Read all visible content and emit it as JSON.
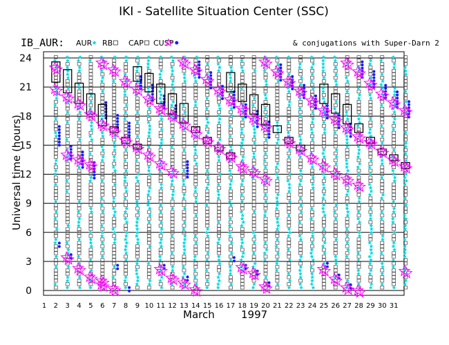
{
  "header": {
    "title": "IKI - Satellite Situation Center (SSC)",
    "instrument": "IB_AUR:",
    "conjugation_note": "& conjugations with Super-Darn 2"
  },
  "legend": {
    "items": [
      {
        "label": "AUR",
        "symbol": "cyan-star-icon",
        "color": "#00d8e0"
      },
      {
        "label": "RB",
        "symbol": "open-square-icon",
        "color": "#555555"
      },
      {
        "label": "CAP",
        "symbol": "open-square-icon",
        "color": "#555555"
      },
      {
        "label": "CUSP",
        "symbol": "blue-dot-icon",
        "color": "#1a1aff"
      },
      {
        "label": "",
        "symbol": "magenta-star-icon",
        "color": "#ff00ff"
      }
    ]
  },
  "colors": {
    "aur": "#00d8e0",
    "rb": "#555555",
    "cusp": "#1a1aff",
    "conjugation": "#ff00ff",
    "box": "#000000"
  },
  "chart_data": {
    "type": "scatter",
    "title": "IKI - Satellite Situation Center (SSC)",
    "xlabel_month": "March",
    "xlabel_year": "1997",
    "ylabel": "Universal time (hours)",
    "xlim": [
      1,
      32
    ],
    "ylim": [
      0,
      24
    ],
    "y_ticks": [
      0,
      3,
      6,
      9,
      12,
      15,
      18,
      21,
      24
    ],
    "x_ticks": [
      1,
      2,
      3,
      4,
      5,
      6,
      7,
      8,
      9,
      10,
      11,
      12,
      13,
      14,
      15,
      16,
      17,
      18,
      19,
      20,
      21,
      22,
      23,
      24,
      25,
      26,
      27,
      28,
      29,
      30,
      31
    ],
    "grid": true,
    "boxes": [
      {
        "day": 2,
        "y0": 21.5,
        "y1": 23.6
      },
      {
        "day": 3,
        "y0": 20.4,
        "y1": 22.8
      },
      {
        "day": 4,
        "y0": 19.3,
        "y1": 21.4
      },
      {
        "day": 5,
        "y0": 18.2,
        "y1": 20.3
      },
      {
        "day": 6,
        "y0": 17.0,
        "y1": 19.2
      },
      {
        "day": 7,
        "y0": 16.3,
        "y1": 16.9
      },
      {
        "day": 8,
        "y0": 15.2,
        "y1": 15.8
      },
      {
        "day": 9,
        "y0": 14.6,
        "y1": 15.1
      },
      {
        "day": 9,
        "y0": 21.6,
        "y1": 23.1
      },
      {
        "day": 10,
        "y0": 20.5,
        "y1": 22.4
      },
      {
        "day": 11,
        "y0": 19.3,
        "y1": 21.3
      },
      {
        "day": 12,
        "y0": 18.2,
        "y1": 20.3
      },
      {
        "day": 13,
        "y0": 17.3,
        "y1": 19.3
      },
      {
        "day": 14,
        "y0": 16.3,
        "y1": 16.9
      },
      {
        "day": 15,
        "y0": 15.2,
        "y1": 15.8
      },
      {
        "day": 16,
        "y0": 14.4,
        "y1": 15.0
      },
      {
        "day": 17,
        "y0": 13.6,
        "y1": 14.2
      },
      {
        "day": 17,
        "y0": 20.5,
        "y1": 22.5
      },
      {
        "day": 18,
        "y0": 19.5,
        "y1": 21.3
      },
      {
        "day": 19,
        "y0": 18.2,
        "y1": 20.2
      },
      {
        "day": 20,
        "y0": 17.1,
        "y1": 19.2
      },
      {
        "day": 21,
        "y0": 16.3,
        "y1": 17.0
      },
      {
        "day": 22,
        "y0": 15.2,
        "y1": 15.8
      },
      {
        "day": 23,
        "y0": 14.4,
        "y1": 15.0
      },
      {
        "day": 25,
        "y0": 19.3,
        "y1": 21.3
      },
      {
        "day": 26,
        "y0": 18.3,
        "y1": 20.3
      },
      {
        "day": 27,
        "y0": 17.2,
        "y1": 19.2
      },
      {
        "day": 28,
        "y0": 16.3,
        "y1": 17.2
      },
      {
        "day": 29,
        "y0": 15.2,
        "y1": 15.8
      },
      {
        "day": 30,
        "y0": 14.0,
        "y1": 14.6
      },
      {
        "day": 31,
        "y0": 13.4,
        "y1": 14.0
      },
      {
        "day": 32,
        "y0": 12.6,
        "y1": 13.2
      }
    ],
    "conjugation_clusters": [
      [
        2,
        [
          20.8,
          23.0
        ]
      ],
      [
        3,
        [
          14.0,
          20.0,
          3.4
        ]
      ],
      [
        4,
        [
          13.5,
          19.3,
          2.3
        ]
      ],
      [
        5,
        [
          13.0,
          18.2,
          1.4
        ]
      ],
      [
        6,
        [
          17.2,
          23.5,
          0.6,
          1.0
        ]
      ],
      [
        7,
        [
          16.5,
          22.8,
          0.2
        ]
      ],
      [
        8,
        [
          15.5,
          21.6
        ]
      ],
      [
        9,
        [
          14.8,
          20.8
        ]
      ],
      [
        10,
        [
          14.0,
          19.8
        ]
      ],
      [
        11,
        [
          13.1,
          18.8,
          2.2
        ]
      ],
      [
        12,
        [
          12.3,
          18.1,
          1.3
        ]
      ],
      [
        13,
        [
          17.2,
          23.6,
          0.8
        ]
      ],
      [
        14,
        [
          16.3,
          22.8,
          0.1
        ]
      ],
      [
        15,
        [
          15.5,
          21.8
        ]
      ],
      [
        16,
        [
          14.8,
          20.7
        ]
      ],
      [
        17,
        [
          13.9,
          19.7
        ]
      ],
      [
        18,
        [
          12.8,
          18.8,
          2.4
        ]
      ],
      [
        19,
        [
          12.3,
          17.8,
          1.8
        ]
      ],
      [
        20,
        [
          11.5,
          17.0,
          23.6,
          0.4
        ]
      ],
      [
        21,
        [
          22.6
        ]
      ],
      [
        22,
        [
          15.4,
          21.6
        ]
      ],
      [
        23,
        [
          14.6,
          20.6
        ]
      ],
      [
        24,
        [
          13.7,
          19.6
        ]
      ],
      [
        25,
        [
          12.9,
          18.6,
          2.2
        ]
      ],
      [
        26,
        [
          12.1,
          17.7,
          1.2
        ]
      ],
      [
        27,
        [
          11.5,
          16.8,
          23.5,
          0.3
        ]
      ],
      [
        28,
        [
          10.9,
          15.9,
          22.6,
          0.0
        ]
      ],
      [
        29,
        [
          15.3,
          21.4
        ]
      ],
      [
        30,
        [
          14.4,
          20.3
        ]
      ],
      [
        31,
        [
          13.5,
          19.4
        ]
      ],
      [
        32,
        [
          12.8,
          18.6,
          2.0
        ]
      ]
    ],
    "cusp_dot_ranges": [
      [
        2,
        15.0,
        17.0
      ],
      [
        3,
        13.6,
        15.2
      ],
      [
        4,
        12.7,
        14.4
      ],
      [
        5,
        11.6,
        13.4
      ],
      [
        6,
        17.8,
        19.5
      ],
      [
        7,
        16.8,
        18.4
      ],
      [
        8,
        16.0,
        17.4
      ],
      [
        9,
        20.8,
        22.4
      ],
      [
        10,
        19.6,
        21.3
      ],
      [
        11,
        18.8,
        20.4
      ],
      [
        12,
        17.8,
        19.4
      ],
      [
        13,
        11.7,
        13.5
      ],
      [
        14,
        22.0,
        23.6
      ],
      [
        15,
        20.9,
        22.5
      ],
      [
        16,
        19.8,
        21.4
      ],
      [
        17,
        18.9,
        20.5
      ],
      [
        18,
        17.9,
        19.4
      ],
      [
        19,
        16.9,
        18.6
      ],
      [
        20,
        15.8,
        17.6
      ],
      [
        21,
        21.7,
        23.4
      ],
      [
        22,
        20.8,
        22.3
      ],
      [
        23,
        19.9,
        21.3
      ],
      [
        24,
        18.8,
        20.4
      ],
      [
        25,
        17.8,
        19.4
      ],
      [
        26,
        16.8,
        18.4
      ],
      [
        27,
        15.9,
        17.4
      ],
      [
        28,
        22.0,
        23.6
      ],
      [
        29,
        21.0,
        22.6
      ],
      [
        30,
        19.9,
        21.4
      ],
      [
        31,
        18.9,
        20.5
      ],
      [
        32,
        17.9,
        19.5
      ]
    ],
    "cusp_dot_lows": [
      [
        2,
        4.9
      ],
      [
        3,
        3.7
      ],
      [
        7,
        2.6
      ],
      [
        8,
        0.3
      ],
      [
        11,
        2.6
      ],
      [
        13,
        1.4
      ],
      [
        17,
        3.4
      ],
      [
        18,
        2.6
      ],
      [
        19,
        2.0
      ],
      [
        20,
        0.8
      ],
      [
        25,
        2.8
      ],
      [
        26,
        1.6
      ],
      [
        27,
        0.6
      ]
    ]
  }
}
